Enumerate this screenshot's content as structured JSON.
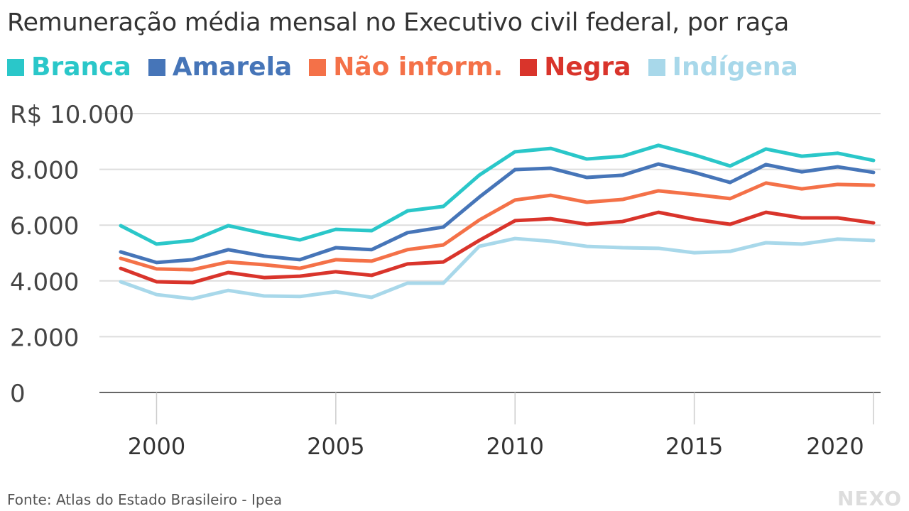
{
  "chart_data": {
    "type": "line",
    "title": "Remuneração média mensal no Executivo civil federal, por raça",
    "xlabel": "",
    "ylabel": "",
    "x": [
      1999,
      2000,
      2001,
      2002,
      2003,
      2004,
      2005,
      2006,
      2007,
      2008,
      2009,
      2010,
      2011,
      2012,
      2013,
      2014,
      2015,
      2016,
      2017,
      2018,
      2019,
      2020
    ],
    "xticks": [
      "2000",
      "2005",
      "2010",
      "2015",
      "2020"
    ],
    "xtick_values": [
      2000,
      2005,
      2010,
      2015,
      2020
    ],
    "yticks": [
      "0",
      "2.000",
      "4.000",
      "6.000",
      "8.000",
      "R$ 10.000"
    ],
    "ytick_values": [
      0,
      2000,
      4000,
      6000,
      8000,
      10000
    ],
    "ylim": [
      0,
      10000
    ],
    "grid": "horizontal",
    "legend": "top",
    "series": [
      {
        "name": "Branca",
        "color": "#2ac7c9",
        "values": [
          5980,
          5320,
          5450,
          5980,
          5700,
          5470,
          5850,
          5800,
          6510,
          6670,
          7790,
          8630,
          8750,
          8370,
          8470,
          8860,
          8520,
          8120,
          8730,
          8470,
          8580,
          8320
        ]
      },
      {
        "name": "Amarela",
        "color": "#4675b8",
        "values": [
          5040,
          4660,
          4760,
          5120,
          4890,
          4760,
          5190,
          5120,
          5730,
          5930,
          7000,
          7990,
          8040,
          7710,
          7790,
          8190,
          7890,
          7530,
          8170,
          7910,
          8090,
          7890
        ]
      },
      {
        "name": "Não inform.",
        "color": "#f47148",
        "values": [
          4810,
          4430,
          4400,
          4680,
          4580,
          4450,
          4760,
          4710,
          5120,
          5290,
          6180,
          6900,
          7070,
          6820,
          6920,
          7230,
          7100,
          6950,
          7510,
          7300,
          7460,
          7430
        ]
      },
      {
        "name": "Negra",
        "color": "#d9342b",
        "values": [
          4450,
          3970,
          3940,
          4300,
          4120,
          4170,
          4330,
          4200,
          4610,
          4680,
          5450,
          6160,
          6230,
          6030,
          6130,
          6460,
          6210,
          6030,
          6460,
          6260,
          6260,
          6080
        ]
      },
      {
        "name": "Indígena",
        "color": "#a8d8ea",
        "values": [
          3970,
          3510,
          3360,
          3660,
          3460,
          3440,
          3610,
          3410,
          3920,
          3920,
          5240,
          5520,
          5420,
          5240,
          5190,
          5170,
          5010,
          5060,
          5370,
          5320,
          5500,
          5450
        ]
      }
    ]
  },
  "source": "Fonte: Atlas do Estado Brasileiro - Ipea",
  "logo": "NEXO"
}
